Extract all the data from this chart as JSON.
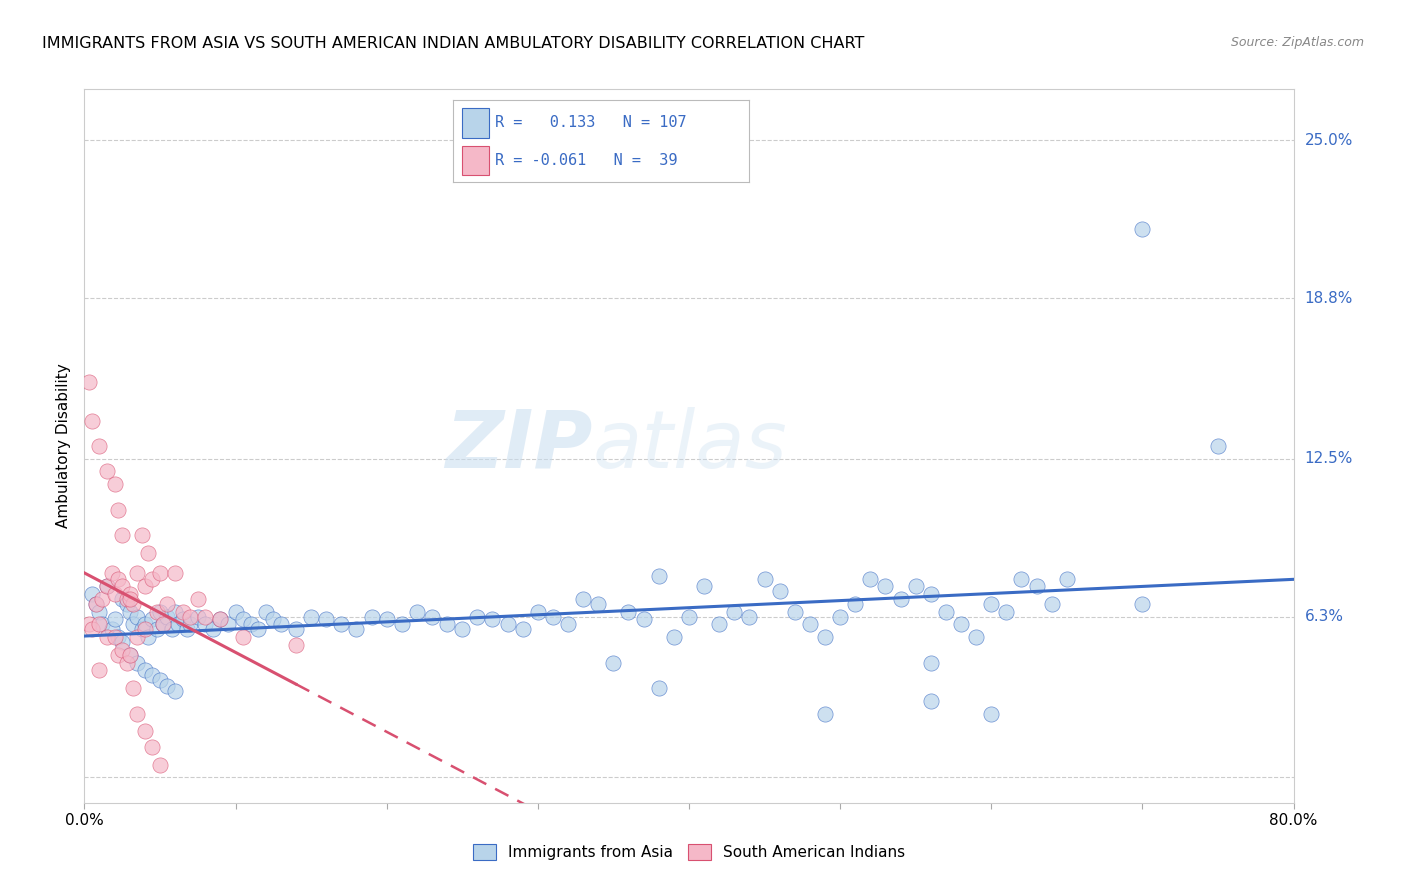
{
  "title": "IMMIGRANTS FROM ASIA VS SOUTH AMERICAN INDIAN AMBULATORY DISABILITY CORRELATION CHART",
  "source": "Source: ZipAtlas.com",
  "ylabel": "Ambulatory Disability",
  "xlim": [
    0.0,
    0.8
  ],
  "ylim": [
    -0.01,
    0.27
  ],
  "yticks": [
    0.0,
    0.063,
    0.125,
    0.188,
    0.25
  ],
  "ytick_labels": [
    "",
    "6.3%",
    "12.5%",
    "18.8%",
    "25.0%"
  ],
  "xticks": [
    0.0,
    0.1,
    0.2,
    0.3,
    0.4,
    0.5,
    0.6,
    0.7,
    0.8
  ],
  "xtick_labels": [
    "0.0%",
    "",
    "",
    "",
    "",
    "",
    "",
    "",
    "80.0%"
  ],
  "blue_R": 0.133,
  "blue_N": 107,
  "pink_R": -0.061,
  "pink_N": 39,
  "blue_color": "#b8d4ea",
  "pink_color": "#f5b8c8",
  "blue_line_color": "#3a6bc4",
  "pink_line_color": "#d85070",
  "watermark_zip": "ZIP",
  "watermark_atlas": "atlas",
  "blue_scatter_x": [
    0.005,
    0.008,
    0.01,
    0.012,
    0.015,
    0.018,
    0.02,
    0.022,
    0.025,
    0.025,
    0.028,
    0.03,
    0.03,
    0.032,
    0.035,
    0.035,
    0.038,
    0.04,
    0.04,
    0.042,
    0.045,
    0.045,
    0.048,
    0.05,
    0.05,
    0.052,
    0.055,
    0.055,
    0.058,
    0.06,
    0.06,
    0.062,
    0.065,
    0.068,
    0.07,
    0.075,
    0.08,
    0.085,
    0.09,
    0.095,
    0.1,
    0.105,
    0.11,
    0.115,
    0.12,
    0.125,
    0.13,
    0.14,
    0.15,
    0.16,
    0.17,
    0.18,
    0.19,
    0.2,
    0.21,
    0.22,
    0.23,
    0.24,
    0.25,
    0.26,
    0.27,
    0.28,
    0.29,
    0.3,
    0.31,
    0.32,
    0.33,
    0.34,
    0.35,
    0.36,
    0.37,
    0.38,
    0.39,
    0.4,
    0.41,
    0.42,
    0.43,
    0.44,
    0.45,
    0.46,
    0.47,
    0.48,
    0.49,
    0.5,
    0.51,
    0.52,
    0.53,
    0.54,
    0.55,
    0.56,
    0.57,
    0.58,
    0.59,
    0.6,
    0.61,
    0.62,
    0.63,
    0.64,
    0.65,
    0.7,
    0.7,
    0.75,
    0.38,
    0.49,
    0.56,
    0.56,
    0.6
  ],
  "blue_scatter_y": [
    0.072,
    0.068,
    0.065,
    0.06,
    0.075,
    0.058,
    0.062,
    0.055,
    0.07,
    0.053,
    0.068,
    0.065,
    0.048,
    0.06,
    0.063,
    0.045,
    0.058,
    0.06,
    0.042,
    0.055,
    0.062,
    0.04,
    0.058,
    0.065,
    0.038,
    0.06,
    0.063,
    0.036,
    0.058,
    0.065,
    0.034,
    0.06,
    0.062,
    0.058,
    0.06,
    0.063,
    0.06,
    0.058,
    0.062,
    0.06,
    0.065,
    0.062,
    0.06,
    0.058,
    0.065,
    0.062,
    0.06,
    0.058,
    0.063,
    0.062,
    0.06,
    0.058,
    0.063,
    0.062,
    0.06,
    0.065,
    0.063,
    0.06,
    0.058,
    0.063,
    0.062,
    0.06,
    0.058,
    0.065,
    0.063,
    0.06,
    0.07,
    0.068,
    0.045,
    0.065,
    0.062,
    0.079,
    0.055,
    0.063,
    0.075,
    0.06,
    0.065,
    0.063,
    0.078,
    0.073,
    0.065,
    0.06,
    0.055,
    0.063,
    0.068,
    0.078,
    0.075,
    0.07,
    0.075,
    0.072,
    0.065,
    0.06,
    0.055,
    0.068,
    0.065,
    0.078,
    0.075,
    0.068,
    0.078,
    0.215,
    0.068,
    0.13,
    0.035,
    0.025,
    0.03,
    0.045,
    0.025
  ],
  "pink_scatter_x": [
    0.003,
    0.005,
    0.008,
    0.01,
    0.01,
    0.012,
    0.015,
    0.015,
    0.018,
    0.02,
    0.02,
    0.022,
    0.022,
    0.025,
    0.025,
    0.028,
    0.028,
    0.03,
    0.03,
    0.032,
    0.035,
    0.035,
    0.038,
    0.04,
    0.04,
    0.042,
    0.045,
    0.048,
    0.05,
    0.052,
    0.055,
    0.06,
    0.065,
    0.07,
    0.075,
    0.08,
    0.09,
    0.105,
    0.14
  ],
  "pink_scatter_y": [
    0.06,
    0.058,
    0.068,
    0.06,
    0.042,
    0.07,
    0.075,
    0.055,
    0.08,
    0.072,
    0.055,
    0.078,
    0.048,
    0.075,
    0.05,
    0.07,
    0.045,
    0.072,
    0.048,
    0.068,
    0.08,
    0.055,
    0.095,
    0.075,
    0.058,
    0.088,
    0.078,
    0.065,
    0.08,
    0.06,
    0.068,
    0.08,
    0.065,
    0.063,
    0.07,
    0.063,
    0.062,
    0.055,
    0.052
  ],
  "pink_outlier_x": [
    0.003,
    0.005,
    0.01,
    0.015,
    0.02,
    0.022,
    0.025,
    0.03,
    0.032,
    0.035,
    0.04,
    0.045,
    0.05
  ],
  "pink_outlier_y": [
    0.155,
    0.14,
    0.13,
    0.12,
    0.115,
    0.105,
    0.095,
    0.07,
    0.035,
    0.025,
    0.018,
    0.012,
    0.005
  ]
}
